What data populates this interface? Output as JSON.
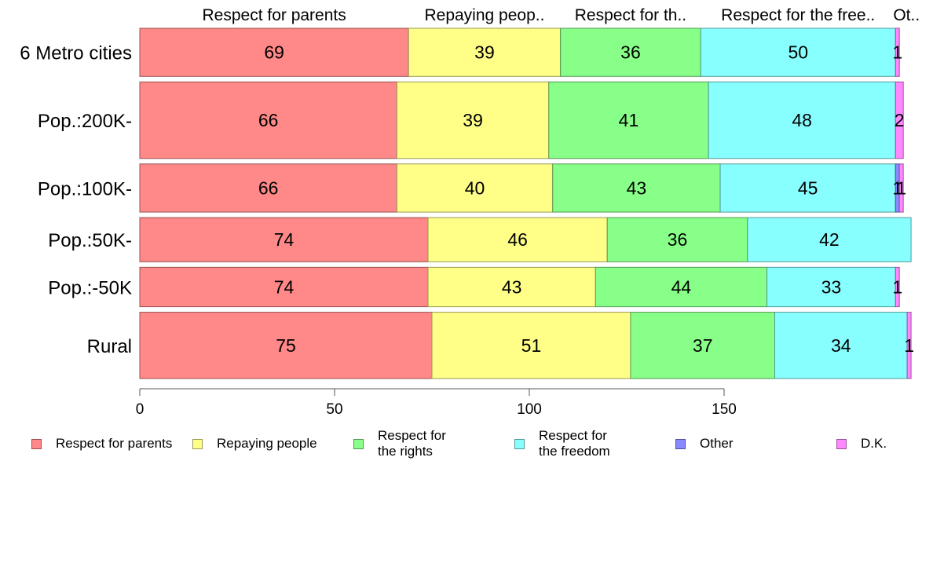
{
  "chart_data": {
    "type": "bar",
    "orientation": "horizontal",
    "stacked": true,
    "title": "",
    "xlabel": "",
    "ylabel": "",
    "xlim": [
      0,
      197
    ],
    "xticks": [
      0,
      50,
      100,
      150
    ],
    "grid": false,
    "legend_position": "bottom",
    "categories": [
      "6 Metro cities",
      "Pop.:200K-",
      "Pop.:100K-",
      "Pop.:50K-",
      "Pop.:-50K",
      "Rural"
    ],
    "category_weights": [
      61,
      97,
      61,
      56,
      50,
      84
    ],
    "top_labels": [
      "Respect for parents",
      "Repaying peop..",
      "Respect for th..",
      "Respect for the free..",
      "Ot.."
    ],
    "series": [
      {
        "name": "Respect for parents",
        "legend_label": "Respect for parents",
        "color": "#ff8888",
        "values": [
          69,
          66,
          66,
          74,
          74,
          75
        ]
      },
      {
        "name": "Repaying people",
        "legend_label": "Repaying people",
        "color": "#ffff88",
        "values": [
          39,
          39,
          40,
          46,
          43,
          51
        ]
      },
      {
        "name": "Respect for the rights",
        "legend_label": "Respect for\nthe rights",
        "color": "#88ff88",
        "values": [
          36,
          41,
          43,
          36,
          44,
          37
        ]
      },
      {
        "name": "Respect for the freedom",
        "legend_label": "Respect for\nthe freedom",
        "color": "#88ffff",
        "values": [
          50,
          48,
          45,
          42,
          33,
          34
        ]
      },
      {
        "name": "Other",
        "legend_label": "Other",
        "color": "#8888ff",
        "values": [
          0,
          0,
          1,
          0,
          0,
          0
        ]
      },
      {
        "name": "D.K.",
        "legend_label": "D.K.",
        "color": "#ff88ff",
        "values": [
          1,
          2,
          1,
          0,
          1,
          1
        ]
      }
    ]
  }
}
